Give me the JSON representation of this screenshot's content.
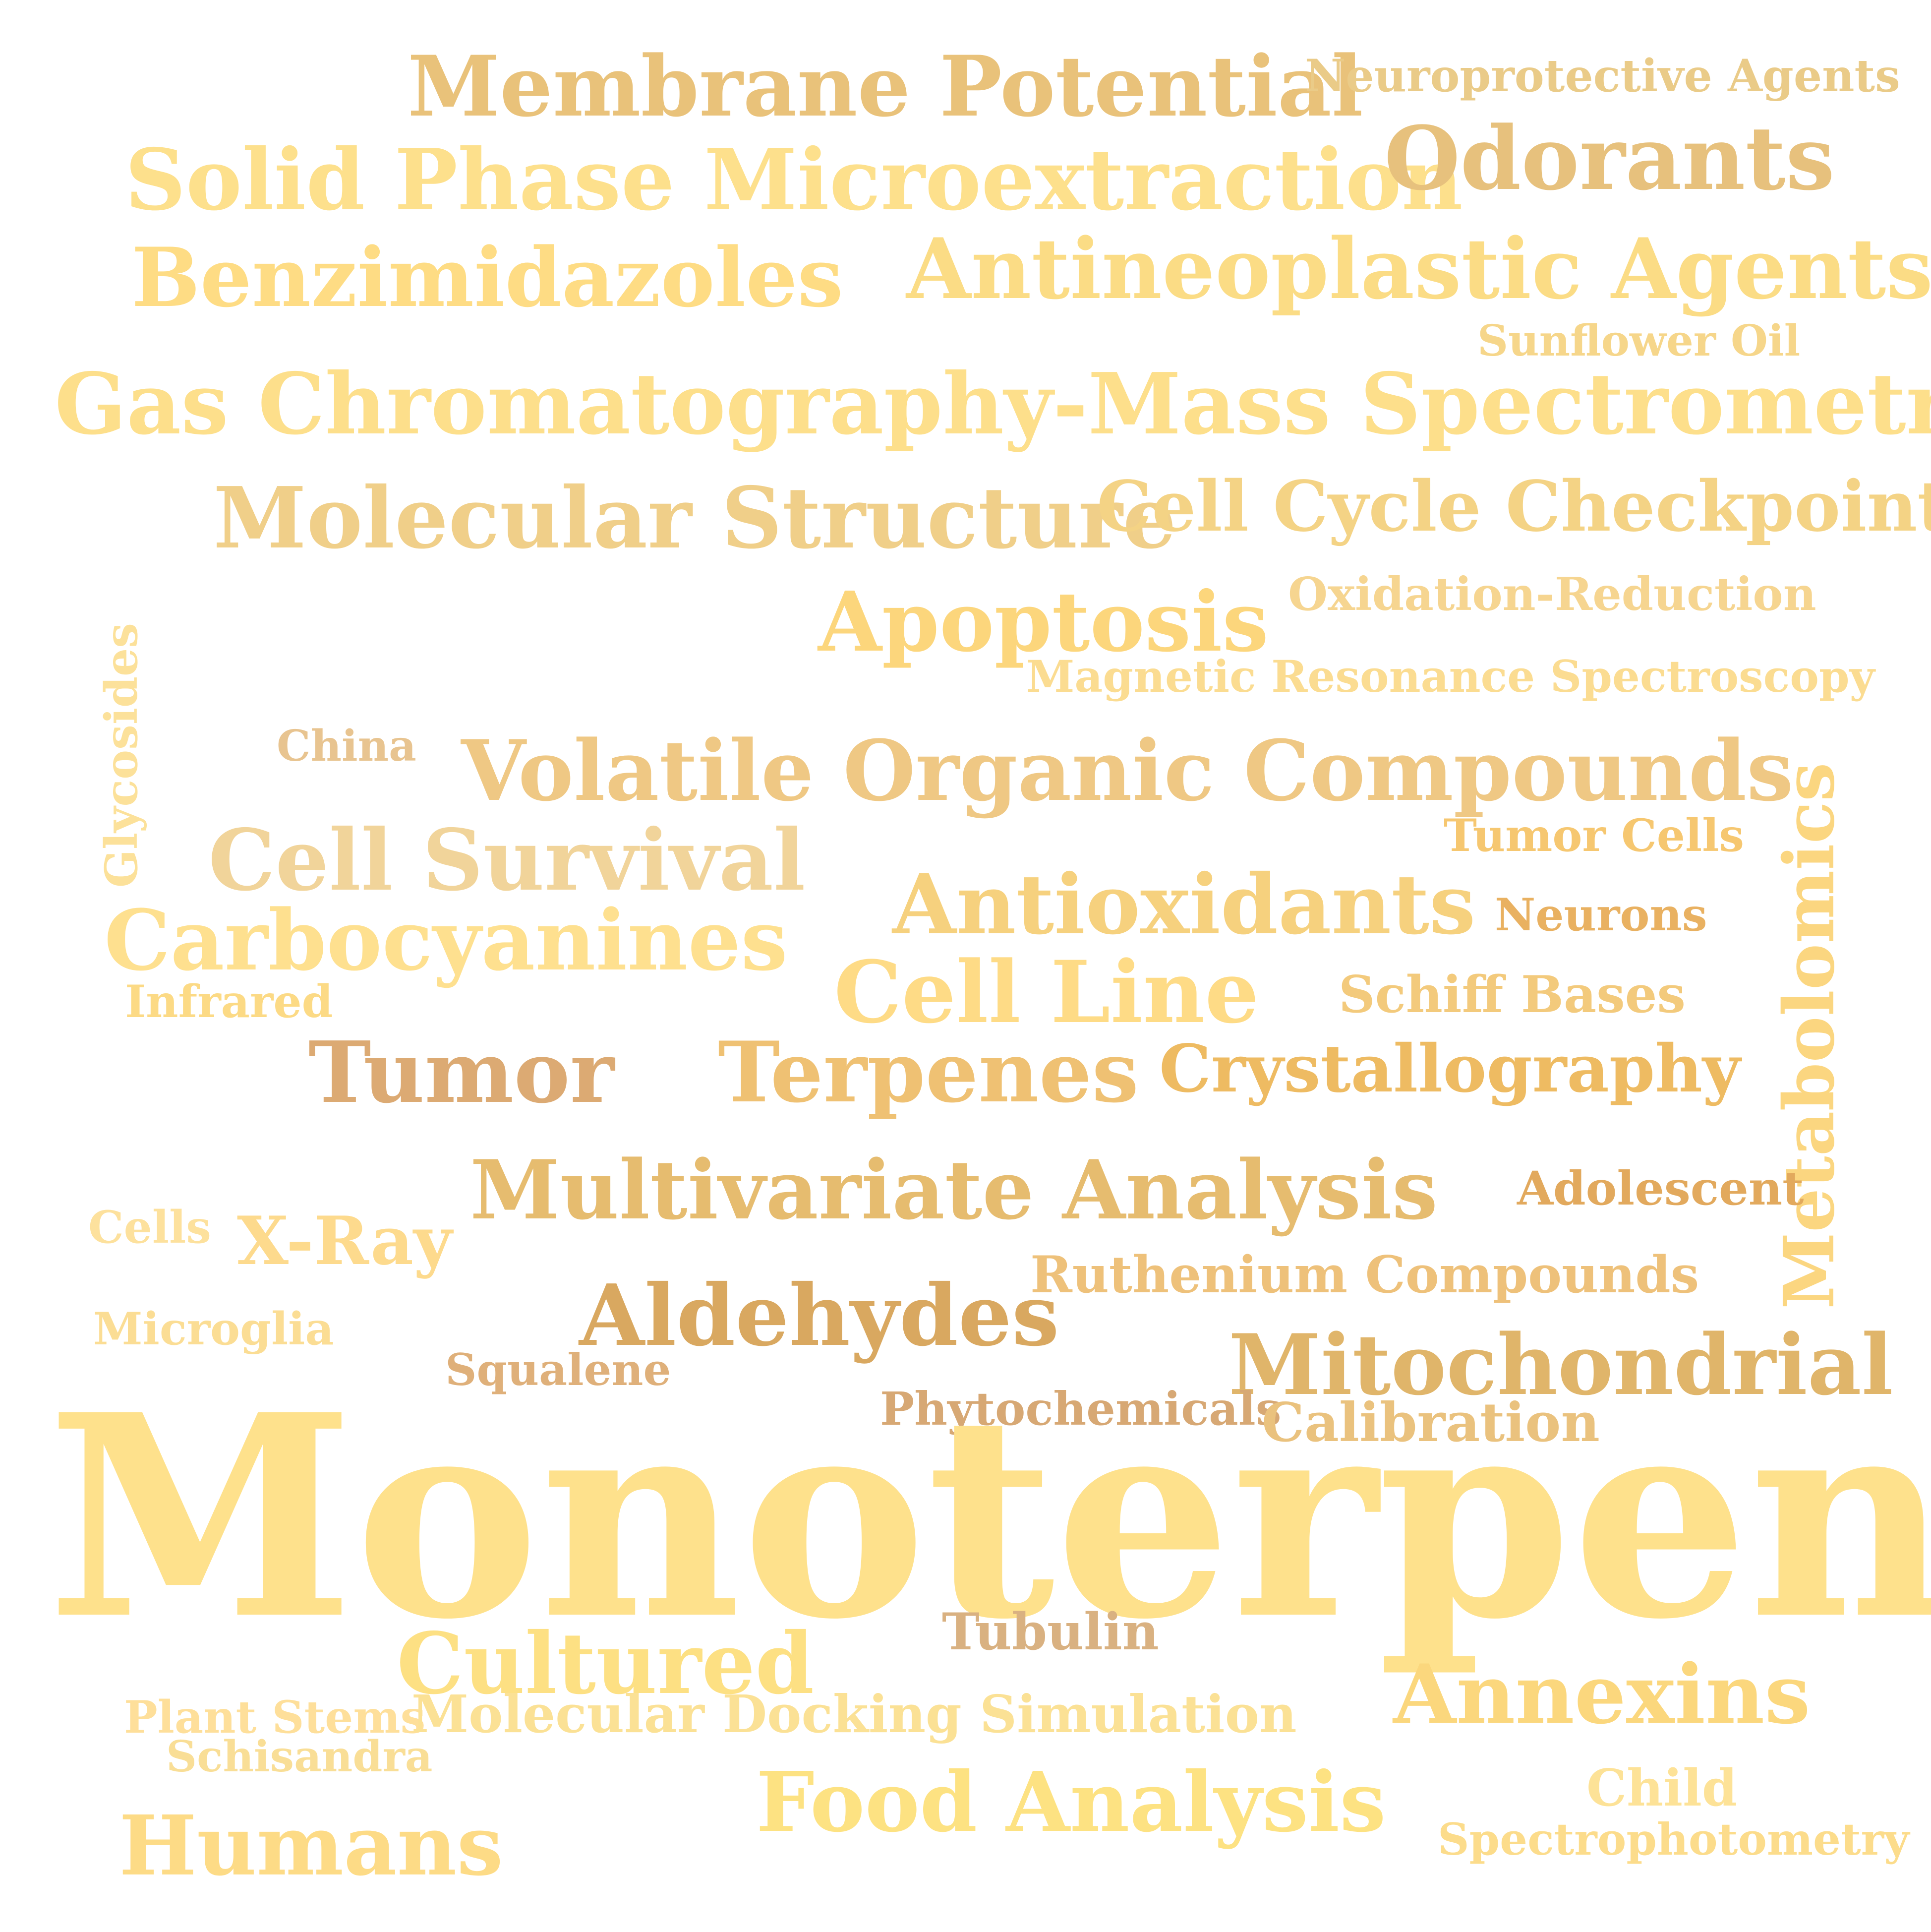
{
  "words": [
    {
      "text": "Membrane Potential",
      "color": "#e9c27a"
    },
    {
      "text": "Neuroprotective Agents",
      "color": "#eacb88"
    },
    {
      "text": "Solid Phase Microextraction",
      "color": "#fde08c"
    },
    {
      "text": "Odorants",
      "color": "#e7c17d"
    },
    {
      "text": "Benzimidazoles",
      "color": "#fedc84"
    },
    {
      "text": "Antineoplastic Agents",
      "color": "#fbdc85"
    },
    {
      "text": "Sunflower Oil",
      "color": "#f6d68a"
    },
    {
      "text": "Gas Chromatography-Mass Spectrometry",
      "color": "#fddf8b"
    },
    {
      "text": "Molecular Structure",
      "color": "#f0cf89"
    },
    {
      "text": "Cell Cycle Checkpoints",
      "color": "#f4d385"
    },
    {
      "text": "Oxidation-Reduction",
      "color": "#f6d590"
    },
    {
      "text": "Apoptosis",
      "color": "#fcd67c"
    },
    {
      "text": "Magnetic Resonance Spectroscopy",
      "color": "#fbdc91"
    },
    {
      "text": "Glycosides",
      "color": "#fce19a"
    },
    {
      "text": "China",
      "color": "#e8c490"
    },
    {
      "text": "Volatile Organic Compounds",
      "color": "#efc884"
    },
    {
      "text": "Metabolomics",
      "color": "#fbd680"
    },
    {
      "text": "Tumor Cells",
      "color": "#f6c770"
    },
    {
      "text": "Cell Survival",
      "color": "#f1d49a"
    },
    {
      "text": "Antioxidants",
      "color": "#f6d17e"
    },
    {
      "text": "Neurons",
      "color": "#e9b161"
    },
    {
      "text": "Carbocyanines",
      "color": "#fee08f"
    },
    {
      "text": "Infrared",
      "color": "#fcda85"
    },
    {
      "text": "Cell Line",
      "color": "#fedb86"
    },
    {
      "text": "Schiff Bases",
      "color": "#f3ca7c"
    },
    {
      "text": "Tumor",
      "color": "#dcaa73"
    },
    {
      "text": "Terpenes",
      "color": "#efc173"
    },
    {
      "text": "Crystallography",
      "color": "#eebb62"
    },
    {
      "text": "Multivariate Analysis",
      "color": "#e6bc6f"
    },
    {
      "text": "Adolescent",
      "color": "#e2a95d"
    },
    {
      "text": "Cells",
      "color": "#fde19d"
    },
    {
      "text": "X-Ray",
      "color": "#fdda8d"
    },
    {
      "text": "Ruthenium Compounds",
      "color": "#eec17a"
    },
    {
      "text": "Aldehydes",
      "color": "#d9a860"
    },
    {
      "text": "Microglia",
      "color": "#fbdd94"
    },
    {
      "text": "Squalene",
      "color": "#dfb07a"
    },
    {
      "text": "Mitochondrial",
      "color": "#e0b56a"
    },
    {
      "text": "Phytochemicals",
      "color": "#d7a874"
    },
    {
      "text": "Calibration",
      "color": "#eac27e"
    },
    {
      "text": "Monoterpenes",
      "color": "#fee18c"
    },
    {
      "text": "Tubulin",
      "color": "#d9b181"
    },
    {
      "text": "Cultured",
      "color": "#fde083"
    },
    {
      "text": "Annexins",
      "color": "#fbd77d"
    },
    {
      "text": "Plant Stems",
      "color": "#fedf9a"
    },
    {
      "text": "Molecular Docking Simulation",
      "color": "#fbe195"
    },
    {
      "text": "Schisandra",
      "color": "#f9de96"
    },
    {
      "text": "Food Analysis",
      "color": "#fde282"
    },
    {
      "text": "Child",
      "color": "#fde297"
    },
    {
      "text": "Humans",
      "color": "#fddb86"
    },
    {
      "text": "Spectrophotometry",
      "color": "#fcdc8b"
    }
  ]
}
